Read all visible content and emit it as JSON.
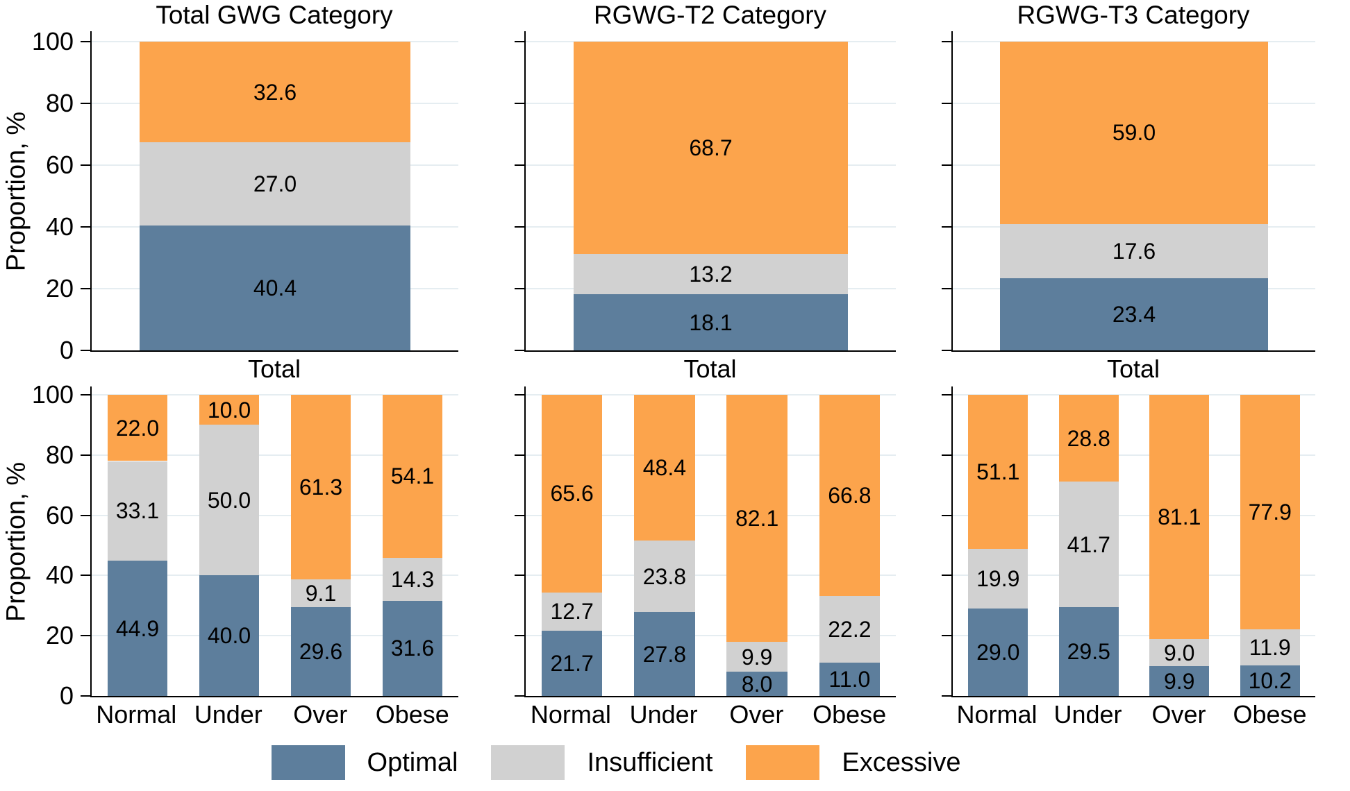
{
  "figure": {
    "ylabel": "Proportion, %",
    "yticks": [
      0,
      20,
      40,
      60,
      80,
      100
    ],
    "colors": {
      "optimal": "#5d7e9c",
      "insufficient": "#d1d1d1",
      "excessive": "#fca44c",
      "gridline": "#e5edf1",
      "axis": "#000000"
    },
    "legend": [
      {
        "label": "Optimal",
        "color": "#5d7e9c"
      },
      {
        "label": "Insufficient",
        "color": "#d1d1d1"
      },
      {
        "label": "Excessive",
        "color": "#fca44c"
      }
    ]
  },
  "chart_data": [
    {
      "type": "bar",
      "stacked": true,
      "panel": "top-left",
      "title": "Total GWG Category",
      "ylabel": "Proportion, %",
      "ylim": [
        0,
        100
      ],
      "grid": true,
      "categories": [
        "Total"
      ],
      "series": [
        {
          "name": "Optimal",
          "values": [
            40.4
          ]
        },
        {
          "name": "Insufficient",
          "values": [
            27.0
          ]
        },
        {
          "name": "Excessive",
          "values": [
            32.6
          ]
        }
      ]
    },
    {
      "type": "bar",
      "stacked": true,
      "panel": "top-middle",
      "title": "RGWG-T2 Category",
      "ylim": [
        0,
        100
      ],
      "grid": true,
      "categories": [
        "Total"
      ],
      "series": [
        {
          "name": "Optimal",
          "values": [
            18.1
          ]
        },
        {
          "name": "Insufficient",
          "values": [
            13.2
          ]
        },
        {
          "name": "Excessive",
          "values": [
            68.7
          ]
        }
      ]
    },
    {
      "type": "bar",
      "stacked": true,
      "panel": "top-right",
      "title": "RGWG-T3 Category",
      "ylim": [
        0,
        100
      ],
      "grid": true,
      "categories": [
        "Total"
      ],
      "series": [
        {
          "name": "Optimal",
          "values": [
            23.4
          ]
        },
        {
          "name": "Insufficient",
          "values": [
            17.6
          ]
        },
        {
          "name": "Excessive",
          "values": [
            59.0
          ]
        }
      ]
    },
    {
      "type": "bar",
      "stacked": true,
      "panel": "bottom-left",
      "title": "",
      "ylabel": "Proportion, %",
      "ylim": [
        0,
        100
      ],
      "grid": true,
      "categories": [
        "Normal",
        "Under",
        "Over",
        "Obese"
      ],
      "series": [
        {
          "name": "Optimal",
          "values": [
            44.9,
            40.0,
            29.6,
            31.6
          ]
        },
        {
          "name": "Insufficient",
          "values": [
            33.1,
            50.0,
            9.1,
            14.3
          ]
        },
        {
          "name": "Excessive",
          "values": [
            22.0,
            10.0,
            61.3,
            54.1
          ]
        }
      ]
    },
    {
      "type": "bar",
      "stacked": true,
      "panel": "bottom-middle",
      "title": "",
      "ylim": [
        0,
        100
      ],
      "grid": true,
      "categories": [
        "Normal",
        "Under",
        "Over",
        "Obese"
      ],
      "series": [
        {
          "name": "Optimal",
          "values": [
            21.7,
            27.8,
            8.0,
            11.0
          ]
        },
        {
          "name": "Insufficient",
          "values": [
            12.7,
            23.8,
            9.9,
            22.2
          ]
        },
        {
          "name": "Excessive",
          "values": [
            65.6,
            48.4,
            82.1,
            66.8
          ]
        }
      ]
    },
    {
      "type": "bar",
      "stacked": true,
      "panel": "bottom-right",
      "title": "",
      "ylim": [
        0,
        100
      ],
      "grid": true,
      "categories": [
        "Normal",
        "Under",
        "Over",
        "Obese"
      ],
      "series": [
        {
          "name": "Optimal",
          "values": [
            29.0,
            29.5,
            9.9,
            10.2
          ]
        },
        {
          "name": "Insufficient",
          "values": [
            19.9,
            41.7,
            9.0,
            11.9
          ]
        },
        {
          "name": "Excessive",
          "values": [
            51.1,
            28.8,
            81.1,
            77.9
          ]
        }
      ]
    }
  ]
}
